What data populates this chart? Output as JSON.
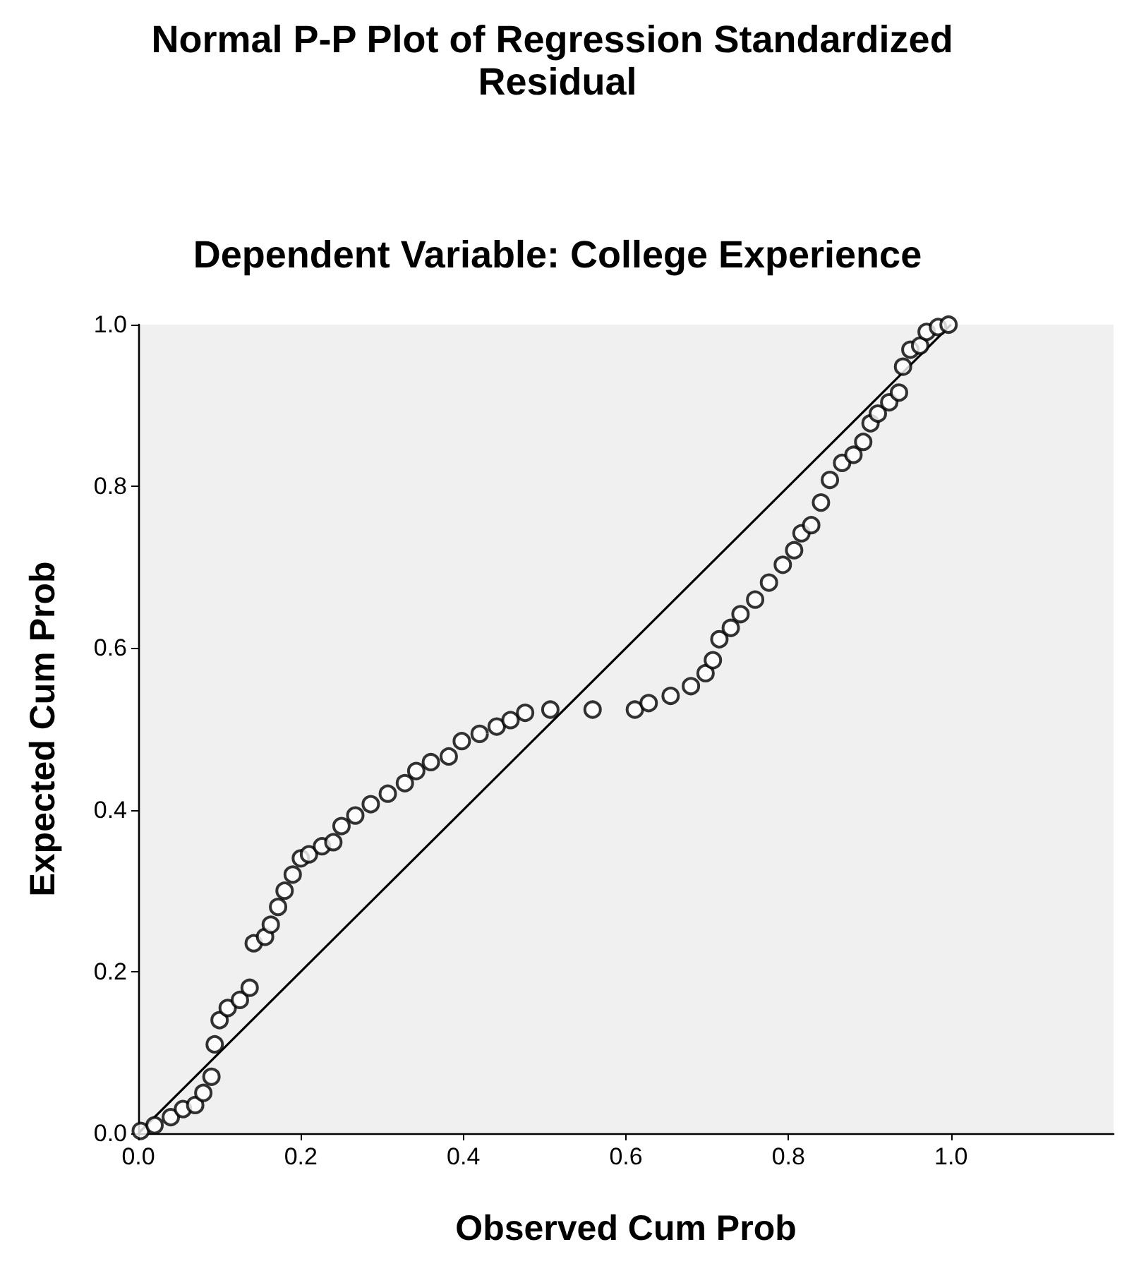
{
  "chart_data": {
    "type": "scatter",
    "title": "Normal P-P Plot of Regression Standardized Residual",
    "subtitle": "Dependent Variable: College Experience",
    "xlabel": "Observed Cum Prob",
    "ylabel": "Expected Cum Prob",
    "xlim": [
      0,
      1.2
    ],
    "xticks": [
      {
        "value": 0,
        "label": "0.0"
      },
      {
        "value": 0.2,
        "label": "0.2"
      },
      {
        "value": 0.4,
        "label": "0.4"
      },
      {
        "value": 0.6,
        "label": "0.6"
      },
      {
        "value": 0.8,
        "label": "0.8"
      },
      {
        "value": 1,
        "label": "1.0"
      }
    ],
    "ylim": [
      0,
      1
    ],
    "yticks": [
      {
        "value": 0,
        "label": "0.0"
      },
      {
        "value": 0.2,
        "label": "0.2"
      },
      {
        "value": 0.4,
        "label": "0.4"
      },
      {
        "value": 0.6,
        "label": "0.6"
      },
      {
        "value": 0.8,
        "label": "0.8"
      },
      {
        "value": 1,
        "label": "1.0"
      }
    ],
    "grid": false,
    "marker": "circle",
    "series": [
      {
        "color": "#000000",
        "x": [
          0.003,
          0.02,
          0.04,
          0.055,
          0.07,
          0.08,
          0.09,
          0.094,
          0.1,
          0.11,
          0.125,
          0.137,
          0.142,
          0.156,
          0.163,
          0.172,
          0.18,
          0.19,
          0.2,
          0.21,
          0.226,
          0.24,
          0.25,
          0.267,
          0.286,
          0.307,
          0.328,
          0.342,
          0.36,
          0.382,
          0.398,
          0.42,
          0.441,
          0.458,
          0.476,
          0.507,
          0.559,
          0.611,
          0.628,
          0.655,
          0.68,
          0.698,
          0.707,
          0.715,
          0.729,
          0.741,
          0.759,
          0.776,
          0.793,
          0.807,
          0.816,
          0.828,
          0.84,
          0.851,
          0.866,
          0.88,
          0.892,
          0.901,
          0.91,
          0.924,
          0.936,
          0.941,
          0.95,
          0.962,
          0.97,
          0.984,
          0.997
        ],
        "values": [
          0.003,
          0.01,
          0.02,
          0.03,
          0.035,
          0.05,
          0.07,
          0.11,
          0.14,
          0.155,
          0.165,
          0.18,
          0.235,
          0.243,
          0.258,
          0.28,
          0.3,
          0.32,
          0.34,
          0.345,
          0.355,
          0.36,
          0.38,
          0.393,
          0.407,
          0.42,
          0.433,
          0.448,
          0.459,
          0.466,
          0.485,
          0.494,
          0.503,
          0.511,
          0.52,
          0.524,
          0.524,
          0.524,
          0.532,
          0.541,
          0.553,
          0.569,
          0.585,
          0.611,
          0.625,
          0.642,
          0.66,
          0.681,
          0.703,
          0.721,
          0.742,
          0.752,
          0.78,
          0.808,
          0.829,
          0.839,
          0.855,
          0.878,
          0.89,
          0.904,
          0.916,
          0.948,
          0.969,
          0.974,
          0.991,
          0.997,
          1.0
        ]
      },
      {
        "type": "line",
        "color": "#000000",
        "x": [
          0,
          1
        ],
        "values": [
          0,
          1
        ],
        "marker": "none",
        "line_style": "solid"
      }
    ]
  }
}
